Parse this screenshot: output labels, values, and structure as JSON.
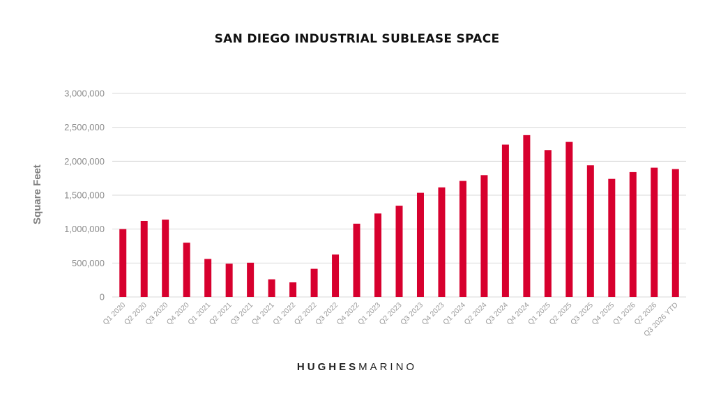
{
  "chart_data": {
    "type": "bar",
    "title": "SAN DIEGO INDUSTRIAL SUBLEASE SPACE",
    "xlabel": "",
    "ylabel": "Square Feet",
    "ylim": [
      0,
      3000000
    ],
    "yticks": [
      "0",
      "500,000",
      "1,000,000",
      "1,500,000",
      "2,000,000",
      "2,500,000",
      "3,000,000"
    ],
    "grid": true,
    "legend": "none",
    "bar_color": "#d7002e",
    "categories": [
      "Q1 2020",
      "Q2 2020",
      "Q3 2020",
      "Q4 2020",
      "Q1 2021",
      "Q2 2021",
      "Q3 2021",
      "Q4 2021",
      "Q1 2022",
      "Q2 2022",
      "Q3 2022",
      "Q4 2022",
      "Q1 2023",
      "Q2 2023",
      "Q3 2023",
      "Q4 2023",
      "Q1 2024",
      "Q2 2024",
      "Q3 2024",
      "Q4 2024",
      "Q1 2025",
      "Q2 2025",
      "Q3 2025",
      "Q4 2025",
      "Q1 2026",
      "Q2 2026",
      "Q3 2026 YTD"
    ],
    "values": [
      1000000,
      1120000,
      1140000,
      800000,
      560000,
      490000,
      505000,
      260000,
      215000,
      415000,
      625000,
      1080000,
      1230000,
      1345000,
      1535000,
      1615000,
      1710000,
      1795000,
      2245000,
      2385000,
      2165000,
      2285000,
      1940000,
      1740000,
      1840000,
      1905000,
      1885000
    ]
  },
  "branding": {
    "logo_bold": "HUGHES",
    "logo_light": "MARINO"
  }
}
